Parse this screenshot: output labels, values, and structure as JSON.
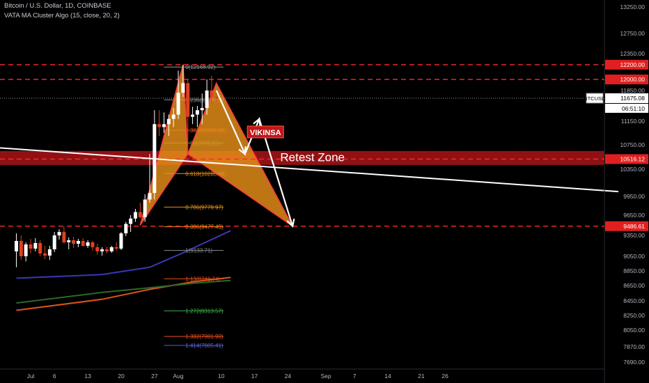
{
  "legend": {
    "symbol_line": "Bitcoin / U.S. Dollar, 1D, COINBASE",
    "indicator_line": "VATA MA Cluster Algo (15, close, 20, 2)"
  },
  "colors": {
    "background": "#000000",
    "bull": "#ffffff",
    "bear": "#e0401f",
    "harmonic_fill": "#e8901a",
    "harmonic_stroke": "#ff3b3b",
    "resistance": "#ff2a2a",
    "retest_zone": "#c0171b",
    "trendline": "#ffffff",
    "ma_blue": "#3a37b8",
    "ma_orange": "#e0541a",
    "ma_green": "#2a6a2a"
  },
  "annotations": {
    "watermark": "VIKINSA",
    "retest_zone_label": "Retest Zone"
  },
  "chart_data": {
    "type": "candlestick",
    "title": "Bitcoin / U.S. Dollar, 1D, COINBASE",
    "ylim": [
      7500,
      13300
    ],
    "y_ticks": [
      13250,
      12750,
      12350,
      11850,
      11150,
      10750,
      10350,
      9950,
      9650,
      9350,
      9050,
      8850,
      8650,
      8450,
      8250,
      8050,
      7870,
      7690
    ],
    "x_ticks": [
      {
        "label": "Jul",
        "day": 0
      },
      {
        "label": "6",
        "day": 5
      },
      {
        "label": "13",
        "day": 12
      },
      {
        "label": "20",
        "day": 19
      },
      {
        "label": "27",
        "day": 26
      },
      {
        "label": "Aug",
        "day": 31
      },
      {
        "label": "10",
        "day": 40
      },
      {
        "label": "17",
        "day": 47
      },
      {
        "label": "24",
        "day": 54
      },
      {
        "label": "Sep",
        "day": 62
      },
      {
        "label": "7",
        "day": 68
      },
      {
        "label": "14",
        "day": 75
      },
      {
        "label": "21",
        "day": 82
      },
      {
        "label": "26",
        "day": 87
      }
    ],
    "candles": [
      {
        "day": -3,
        "o": 9120,
        "h": 9380,
        "l": 8900,
        "c": 9270
      },
      {
        "day": -2,
        "o": 9270,
        "h": 9350,
        "l": 9000,
        "c": 9050
      },
      {
        "day": -1,
        "o": 9050,
        "h": 9250,
        "l": 8980,
        "c": 9220
      },
      {
        "day": 0,
        "o": 9220,
        "h": 9300,
        "l": 9090,
        "c": 9160
      },
      {
        "day": 1,
        "o": 9160,
        "h": 9310,
        "l": 9120,
        "c": 9240
      },
      {
        "day": 2,
        "o": 9240,
        "h": 9280,
        "l": 9050,
        "c": 9090
      },
      {
        "day": 3,
        "o": 9090,
        "h": 9200,
        "l": 9010,
        "c": 9060
      },
      {
        "day": 4,
        "o": 9060,
        "h": 9200,
        "l": 9000,
        "c": 9150
      },
      {
        "day": 5,
        "o": 9150,
        "h": 9400,
        "l": 9110,
        "c": 9350
      },
      {
        "day": 6,
        "o": 9350,
        "h": 9440,
        "l": 9290,
        "c": 9400
      },
      {
        "day": 7,
        "o": 9400,
        "h": 9480,
        "l": 9230,
        "c": 9250
      },
      {
        "day": 8,
        "o": 9250,
        "h": 9320,
        "l": 9150,
        "c": 9280
      },
      {
        "day": 9,
        "o": 9280,
        "h": 9330,
        "l": 9170,
        "c": 9230
      },
      {
        "day": 10,
        "o": 9230,
        "h": 9300,
        "l": 9180,
        "c": 9270
      },
      {
        "day": 11,
        "o": 9270,
        "h": 9310,
        "l": 9190,
        "c": 9200
      },
      {
        "day": 12,
        "o": 9200,
        "h": 9280,
        "l": 9170,
        "c": 9250
      },
      {
        "day": 13,
        "o": 9250,
        "h": 9270,
        "l": 9130,
        "c": 9180
      },
      {
        "day": 14,
        "o": 9180,
        "h": 9230,
        "l": 9070,
        "c": 9120
      },
      {
        "day": 15,
        "o": 9120,
        "h": 9180,
        "l": 9060,
        "c": 9150
      },
      {
        "day": 16,
        "o": 9150,
        "h": 9190,
        "l": 9090,
        "c": 9120
      },
      {
        "day": 17,
        "o": 9120,
        "h": 9200,
        "l": 9100,
        "c": 9180
      },
      {
        "day": 18,
        "o": 9180,
        "h": 9250,
        "l": 9130,
        "c": 9160
      },
      {
        "day": 19,
        "o": 9160,
        "h": 9400,
        "l": 9140,
        "c": 9380
      },
      {
        "day": 20,
        "o": 9380,
        "h": 9550,
        "l": 9340,
        "c": 9520
      },
      {
        "day": 21,
        "o": 9520,
        "h": 9650,
        "l": 9400,
        "c": 9600
      },
      {
        "day": 22,
        "o": 9600,
        "h": 9750,
        "l": 9550,
        "c": 9700
      },
      {
        "day": 23,
        "o": 9700,
        "h": 9850,
        "l": 9600,
        "c": 9620
      },
      {
        "day": 24,
        "o": 9620,
        "h": 9980,
        "l": 9550,
        "c": 9900
      },
      {
        "day": 25,
        "o": 9900,
        "h": 10600,
        "l": 9850,
        "c": 10000
      },
      {
        "day": 26,
        "o": 10000,
        "h": 11400,
        "l": 9900,
        "c": 11100
      },
      {
        "day": 27,
        "o": 11100,
        "h": 11400,
        "l": 10900,
        "c": 11050
      },
      {
        "day": 28,
        "o": 11050,
        "h": 11350,
        "l": 10950,
        "c": 11100
      },
      {
        "day": 29,
        "o": 11100,
        "h": 11300,
        "l": 10900,
        "c": 11200
      },
      {
        "day": 30,
        "o": 11200,
        "h": 11450,
        "l": 11050,
        "c": 11300
      },
      {
        "day": 31,
        "o": 11300,
        "h": 12120,
        "l": 11200,
        "c": 11800
      },
      {
        "day": 32,
        "o": 11800,
        "h": 12200,
        "l": 11700,
        "c": 11950
      },
      {
        "day": 33,
        "o": 11950,
        "h": 12000,
        "l": 10600,
        "c": 11250
      },
      {
        "day": 34,
        "o": 11250,
        "h": 11480,
        "l": 11100,
        "c": 11300
      },
      {
        "day": 35,
        "o": 11300,
        "h": 11500,
        "l": 11050,
        "c": 11400
      },
      {
        "day": 36,
        "o": 11400,
        "h": 11780,
        "l": 11100,
        "c": 11450
      },
      {
        "day": 37,
        "o": 11450,
        "h": 12000,
        "l": 11300,
        "c": 11850
      },
      {
        "day": 38,
        "o": 11850,
        "h": 12050,
        "l": 11550,
        "c": 11700
      },
      {
        "day": 39,
        "o": 11700,
        "h": 11850,
        "l": 11600,
        "c": 11675
      }
    ],
    "harmonic_points": [
      {
        "day": 23,
        "price": 9500
      },
      {
        "day": 32,
        "price": 12200
      },
      {
        "day": 33,
        "price": 10600
      },
      {
        "day": 39,
        "price": 11950
      },
      {
        "day": 55,
        "price": 9486
      }
    ],
    "projection_path": [
      {
        "day": 39,
        "price": 11850
      },
      {
        "day": 45,
        "price": 10600
      },
      {
        "day": 48,
        "price": 11200
      },
      {
        "day": 55,
        "price": 9486
      }
    ],
    "fib_levels": [
      {
        "label": "0(12168.92)",
        "price": 12168.92,
        "color": "#9a9a9a"
      },
      {
        "label": "0.236(11637.33)",
        "price": 11637.33,
        "color": "#8a8a8a"
      },
      {
        "label": "0.382(10997.16)",
        "price": 10997.16,
        "color": "#e8501f"
      },
      {
        "label": "0.5(10781.23)",
        "price": 10781.23,
        "color": "#3fae4a"
      },
      {
        "label": "0.618(10285.52)",
        "price": 10285.52,
        "color": "#e8901a"
      },
      {
        "label": "0.786(9778.97)",
        "price": 9778.97,
        "color": "#e8901a"
      },
      {
        "label": "0.886(9477.45)",
        "price": 9477.45,
        "color": "#e8901a"
      },
      {
        "label": "1(9133.71)",
        "price": 9133.71,
        "color": "#8a8a8a"
      },
      {
        "label": "1.13(8741.74)",
        "price": 8741.74,
        "color": "#e8501f"
      },
      {
        "label": "1.272(8313.57)",
        "price": 8313.57,
        "color": "#3fae4a"
      },
      {
        "label": "1.382(7981.90)",
        "price": 7981.9,
        "color": "#e8501f"
      },
      {
        "label": "1.414(7885.41)",
        "price": 7885.41,
        "color": "#5b5fd6"
      }
    ],
    "resistance_levels": [
      {
        "label": "12200.00",
        "price": 12200
      },
      {
        "label": "12000.00",
        "price": 12000
      },
      {
        "label": "10516.12",
        "price": 10516.12
      },
      {
        "label": "9486.61",
        "price": 9486.61
      }
    ],
    "retest_zone": {
      "top": 10650,
      "bottom": 10420
    },
    "current_price": {
      "symbol": "BTCUSD",
      "price": 11675.08,
      "label": "11675.08",
      "countdown": "06:51:10"
    },
    "trendline": [
      {
        "day": -3,
        "price": 10700
      },
      {
        "day": 87,
        "price": 10020
      }
    ],
    "moving_averages": [
      {
        "name": "ma-blue",
        "color": "#3a37b8",
        "points": [
          [
            -3,
            8750
          ],
          [
            15,
            8800
          ],
          [
            25,
            8900
          ],
          [
            32,
            9100
          ],
          [
            42,
            9420
          ]
        ]
      },
      {
        "name": "ma-orange",
        "color": "#e0541a",
        "points": [
          [
            -3,
            8320
          ],
          [
            15,
            8470
          ],
          [
            25,
            8600
          ],
          [
            34,
            8700
          ],
          [
            42,
            8760
          ]
        ]
      },
      {
        "name": "ma-green",
        "color": "#2a6a2a",
        "points": [
          [
            -3,
            8420
          ],
          [
            15,
            8560
          ],
          [
            25,
            8620
          ],
          [
            34,
            8680
          ],
          [
            42,
            8720
          ]
        ]
      }
    ]
  }
}
